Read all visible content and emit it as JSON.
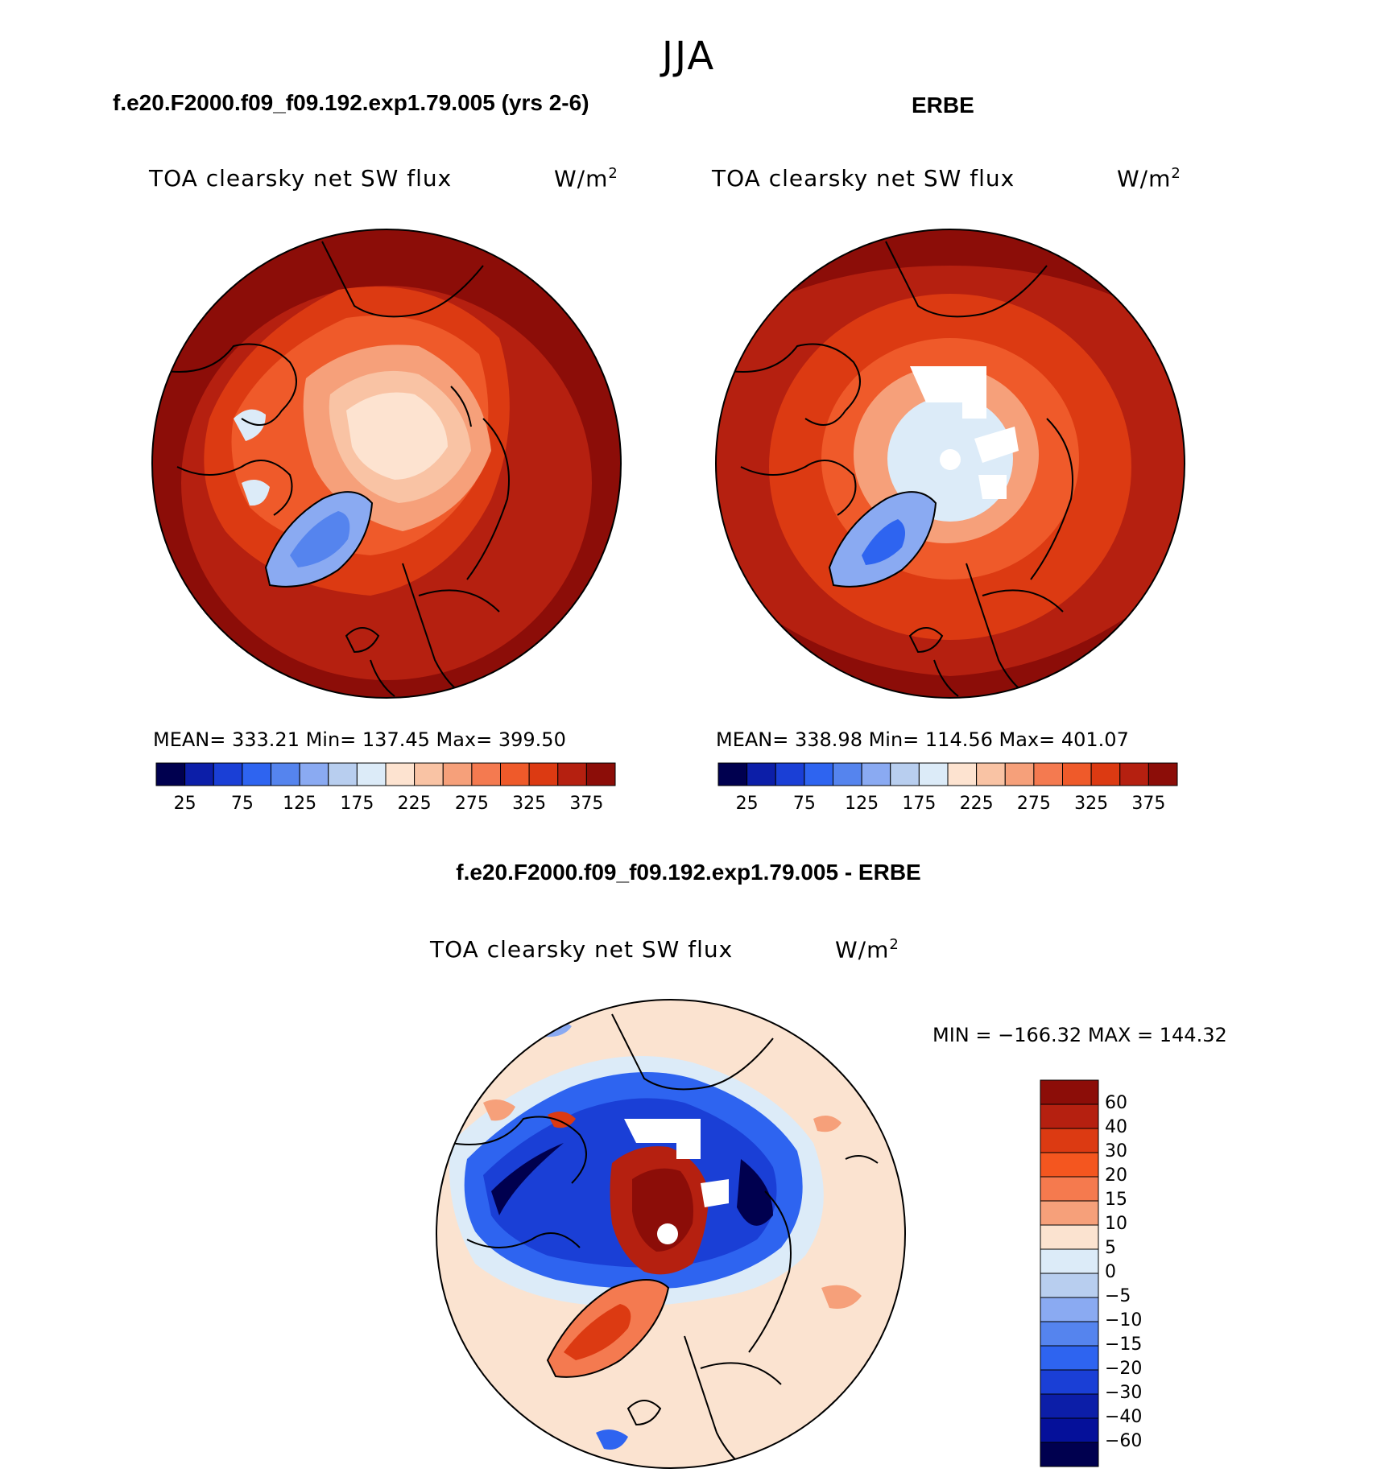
{
  "figure": {
    "season": "JJA",
    "difference_title": "f.e20.F2000.f09_f09.192.exp1.79.005 - ERBE"
  },
  "panels": [
    {
      "case_title": "f.e20.F2000.f09_f09.192.exp1.79.005 (yrs 2-6)",
      "variable": "TOA clearsky net SW flux",
      "units": "W/m",
      "units_sup": "2",
      "stats_text": "MEAN= 333.21   Min= 137.45   Max= 399.50",
      "mean": 333.21,
      "min": 137.45,
      "max": 399.5
    },
    {
      "case_title": "ERBE",
      "variable": "TOA clearsky net SW flux",
      "units": "W/m",
      "units_sup": "2",
      "stats_text": "MEAN= 338.98   Min= 114.56   Max= 401.07",
      "mean": 338.98,
      "min": 114.56,
      "max": 401.07
    },
    {
      "variable": "TOA clearsky net SW flux",
      "units": "W/m",
      "units_sup": "2",
      "stats_text": "MIN = −166.32 MAX = 144.32",
      "min": -166.32,
      "max": 144.32
    }
  ],
  "abs_colorbar": {
    "colors": [
      "#00004f",
      "#0c1ea8",
      "#1a3fd6",
      "#2e64f0",
      "#5584ee",
      "#8aaaf2",
      "#b8ceef",
      "#dcebf8",
      "#fde3d0",
      "#f9c3a4",
      "#f6a07a",
      "#f47a50",
      "#ef5a2a",
      "#dc3a12",
      "#b52010",
      "#8c0d08"
    ],
    "labels": [
      "25",
      "75",
      "125",
      "175",
      "225",
      "275",
      "325",
      "375"
    ]
  },
  "diff_colorbar": {
    "colors": [
      "#8c0d08",
      "#b52010",
      "#dc3a12",
      "#f4561f",
      "#f57a4e",
      "#f6a07a",
      "#fbe3d0",
      "#dcebf8",
      "#b8ceef",
      "#8aaaf2",
      "#5584ee",
      "#2e64f0",
      "#1a3fd6",
      "#0c1ea8",
      "#05109a",
      "#00004f"
    ],
    "labels": [
      "60",
      "40",
      "30",
      "20",
      "15",
      "10",
      "5",
      "0",
      "−5",
      "−10",
      "−15",
      "−20",
      "−30",
      "−40",
      "−60"
    ]
  }
}
